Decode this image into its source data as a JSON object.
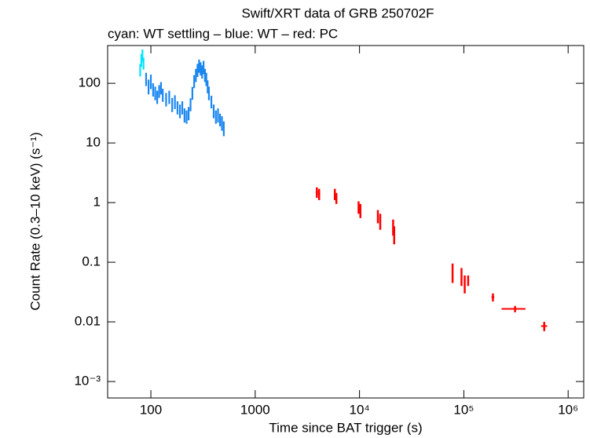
{
  "chart_data": {
    "type": "errorbar",
    "title": "Swift/XRT data of GRB 250702F",
    "subtitle": "cyan: WT settling – blue: WT – red: PC",
    "x_label": "Time since BAT trigger (s)",
    "y_label": "Count Rate (0.3–10 keV) (s⁻¹)",
    "xscale": "log",
    "yscale": "log",
    "xlim": [
      38.5,
      1410000
    ],
    "ylim": [
      0.00053,
      430
    ],
    "xticks": [
      100,
      1000,
      {
        "value": 10000,
        "label": "10⁴"
      },
      {
        "value": 100000,
        "label": "10⁵"
      },
      {
        "value": 1000000,
        "label": "10⁶"
      }
    ],
    "yticks": [
      {
        "value": 0.001,
        "label": "10⁻³"
      },
      0.01,
      0.1,
      1,
      10,
      100
    ],
    "series": [
      {
        "name": "WT settling",
        "color": "#00e5ff",
        "x": [
          79,
          81,
          83,
          85
        ],
        "values": [
          170,
          250,
          300,
          220
        ],
        "yerr": [
          40,
          60,
          70,
          50
        ]
      },
      {
        "name": "WT",
        "color": "#1a86f0",
        "x": [
          90,
          95,
          100,
          105,
          110,
          115,
          120,
          125,
          130,
          140,
          150,
          160,
          170,
          180,
          190,
          200,
          210,
          220,
          230,
          240,
          250,
          260,
          270,
          280,
          290,
          300,
          310,
          320,
          330,
          340,
          350,
          360,
          380,
          400,
          420,
          440,
          460,
          480,
          500
        ],
        "values": [
          120,
          90,
          110,
          80,
          70,
          60,
          75,
          85,
          65,
          55,
          60,
          45,
          50,
          40,
          35,
          40,
          30,
          28,
          32,
          45,
          70,
          110,
          140,
          170,
          200,
          180,
          160,
          190,
          140,
          120,
          90,
          70,
          50,
          35,
          28,
          30,
          25,
          22,
          18
        ],
        "yerr": [
          30,
          25,
          30,
          20,
          18,
          15,
          18,
          20,
          16,
          14,
          15,
          12,
          13,
          10,
          9,
          10,
          8,
          7,
          8,
          11,
          17,
          27,
          35,
          42,
          50,
          45,
          40,
          48,
          35,
          30,
          22,
          18,
          12,
          9,
          7,
          8,
          6,
          6,
          5
        ]
      },
      {
        "name": "PC",
        "color": "#ff0000",
        "x": [
          3900,
          4100,
          5800,
          6000,
          9800,
          10200,
          15000,
          15800,
          21000,
          21500,
          78000,
          95000,
          102000,
          110000,
          190000,
          310000,
          590000
        ],
        "values": [
          1.5,
          1.4,
          1.4,
          1.2,
          0.85,
          0.75,
          0.6,
          0.5,
          0.4,
          0.3,
          0.07,
          0.06,
          0.045,
          0.05,
          0.026,
          0.0165,
          0.0085
        ],
        "yerr": [
          0.3,
          0.3,
          0.3,
          0.25,
          0.2,
          0.2,
          0.15,
          0.15,
          0.12,
          0.1,
          0.025,
          0.02,
          0.015,
          0.01,
          0.004,
          0.002,
          0.0015
        ],
        "xerr": [
          100,
          100,
          100,
          100,
          150,
          150,
          200,
          200,
          250,
          250,
          1000,
          1000,
          1500,
          1500,
          6000,
          80000,
          40000
        ]
      }
    ]
  }
}
